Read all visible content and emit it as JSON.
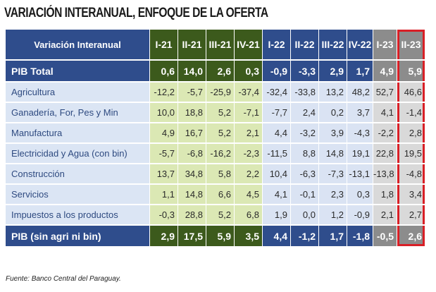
{
  "title": "VARIACIÓN INTERANUAL, ENFOQUE DE LA OFERTA",
  "table": {
    "header": [
      "Variación Interanual",
      "I-21",
      "II-21",
      "III-21",
      "IV-21",
      "I-22",
      "II-22",
      "III-22",
      "IV-22",
      "I-23",
      "II-23"
    ],
    "rows": [
      [
        "PIB Total",
        "0,6",
        "14,0",
        "2,6",
        "0,3",
        "-0,9",
        "-3,3",
        "2,9",
        "1,7",
        "4,9",
        "5,9"
      ],
      [
        "Agricultura",
        "-12,2",
        "-5,7",
        "-25,9",
        "-37,4",
        "-32,4",
        "-33,8",
        "13,2",
        "48,2",
        "52,7",
        "46,6"
      ],
      [
        "Ganadería, For, Pes y Min",
        "10,0",
        "18,8",
        "5,2",
        "-7,1",
        "-7,7",
        "2,4",
        "0,2",
        "3,7",
        "4,1",
        "-1,4"
      ],
      [
        "Manufactura",
        "4,9",
        "16,7",
        "5,2",
        "2,1",
        "4,4",
        "-3,2",
        "3,9",
        "-4,3",
        "-2,2",
        "2,8"
      ],
      [
        "Electricidad y Agua (con bin)",
        "-5,7",
        "-6,8",
        "-16,2",
        "-2,3",
        "-11,5",
        "8,8",
        "14,8",
        "19,1",
        "22,8",
        "19,5"
      ],
      [
        "Construcción",
        "13,7",
        "34,8",
        "5,8",
        "2,2",
        "10,4",
        "-6,3",
        "-7,3",
        "-13,1",
        "-13,8",
        "-4,8"
      ],
      [
        "Servicios",
        "1,1",
        "14,8",
        "6,6",
        "4,5",
        "4,1",
        "-0,1",
        "2,3",
        "0,3",
        "1,8",
        "3,4"
      ],
      [
        "Impuestos a los productos",
        "-0,3",
        "28,8",
        "5,2",
        "6,8",
        "1,9",
        "0,0",
        "1,2",
        "-0,9",
        "2,1",
        "2,7"
      ],
      [
        "PIB (sin agri ni bin)",
        "2,9",
        "17,5",
        "5,9",
        "3,5",
        "4,4",
        "-1,2",
        "1,7",
        "-1,8",
        "-0,5",
        "2,6"
      ]
    ]
  },
  "source": "Fuente: Banco Central del Paraguay."
}
